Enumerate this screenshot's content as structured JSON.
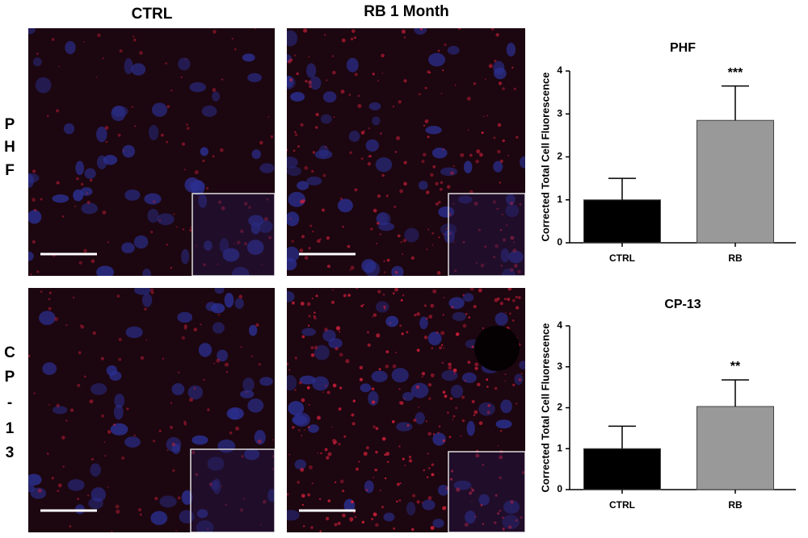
{
  "panels": {
    "columns": [
      "CTRL",
      "RB 1 Month"
    ],
    "rows": [
      {
        "letters": [
          "P",
          "H",
          "F"
        ]
      },
      {
        "letters": [
          "C",
          "P",
          "-",
          "1",
          "3"
        ]
      }
    ]
  },
  "chart_data": [
    {
      "type": "bar",
      "title": "PHF",
      "y_label": "Corrected Total Cell Fluorescence",
      "categories": [
        "CTRL",
        "RB"
      ],
      "values": [
        1.0,
        2.85
      ],
      "errors": [
        0.5,
        0.8
      ],
      "colors": [
        "#000000",
        "#999999"
      ],
      "annotations": [
        null,
        "***"
      ],
      "ylim": [
        0,
        4
      ],
      "yticks": [
        0,
        1,
        2,
        3,
        4
      ]
    },
    {
      "type": "bar",
      "title": "CP-13",
      "y_label": "Corrected Total Cell Fluorescence",
      "categories": [
        "CTRL",
        "RB"
      ],
      "values": [
        1.0,
        2.03
      ],
      "errors": [
        0.55,
        0.65
      ],
      "colors": [
        "#000000",
        "#999999"
      ],
      "annotations": [
        null,
        "**"
      ],
      "ylim": [
        0,
        4
      ],
      "yticks": [
        0,
        1,
        2,
        3,
        4
      ]
    }
  ]
}
